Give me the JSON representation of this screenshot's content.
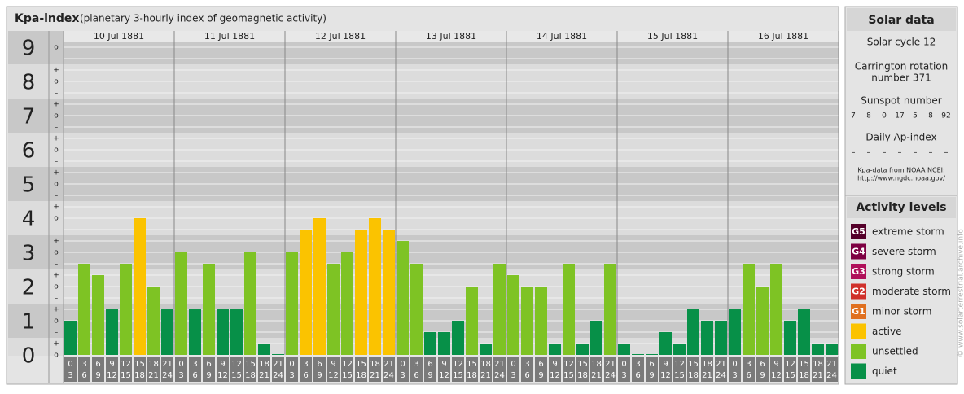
{
  "chart_data": {
    "type": "bar",
    "title": "Kpa-index",
    "subtitle": "(planetary 3-hourly index of geomagnetic activity)",
    "ylim": [
      0,
      9
    ],
    "yticks": [
      0,
      1,
      2,
      3,
      4,
      5,
      6,
      7,
      8,
      9
    ],
    "minor_yticks": [
      {
        "value": 0,
        "label": "o"
      },
      {
        "value": 0.333,
        "label": "+"
      },
      {
        "value": 0.667,
        "label": "–"
      },
      {
        "value": 1,
        "label": "o"
      },
      {
        "value": 1.333,
        "label": "+"
      },
      {
        "value": 1.667,
        "label": "–"
      },
      {
        "value": 2,
        "label": "o"
      },
      {
        "value": 2.333,
        "label": "+"
      },
      {
        "value": 2.667,
        "label": "–"
      },
      {
        "value": 3,
        "label": "o"
      },
      {
        "value": 3.333,
        "label": "+"
      },
      {
        "value": 3.667,
        "label": "–"
      },
      {
        "value": 4,
        "label": "o"
      },
      {
        "value": 4.333,
        "label": "+"
      },
      {
        "value": 4.667,
        "label": "–"
      },
      {
        "value": 5,
        "label": "o"
      },
      {
        "value": 5.333,
        "label": "+"
      },
      {
        "value": 5.667,
        "label": "–"
      },
      {
        "value": 6,
        "label": "o"
      },
      {
        "value": 6.333,
        "label": "+"
      },
      {
        "value": 6.667,
        "label": "–"
      },
      {
        "value": 7,
        "label": "o"
      },
      {
        "value": 7.333,
        "label": "+"
      },
      {
        "value": 7.667,
        "label": "–"
      },
      {
        "value": 8,
        "label": "o"
      },
      {
        "value": 8.333,
        "label": "+"
      },
      {
        "value": 8.667,
        "label": "–"
      },
      {
        "value": 9,
        "label": "o"
      }
    ],
    "grid": true,
    "bands": true,
    "hour_labels": [
      {
        "start": "0",
        "end": "3"
      },
      {
        "start": "3",
        "end": "6"
      },
      {
        "start": "6",
        "end": "9"
      },
      {
        "start": "9",
        "end": "12"
      },
      {
        "start": "12",
        "end": "15"
      },
      {
        "start": "15",
        "end": "18"
      },
      {
        "start": "18",
        "end": "21"
      },
      {
        "start": "21",
        "end": "24"
      }
    ],
    "days": [
      {
        "label": "10 Jul 1881",
        "values": [
          1,
          2.667,
          2.333,
          1.333,
          2.667,
          4,
          2,
          1.333
        ],
        "colors": [
          "#079048",
          "#7ec324",
          "#7ec324",
          "#079048",
          "#7ec324",
          "#fbc300",
          "#7ec324",
          "#079048"
        ]
      },
      {
        "label": "11 Jul 1881",
        "values": [
          3,
          1.333,
          2.667,
          1.333,
          1.333,
          3,
          0.333,
          0
        ],
        "colors": [
          "#7ec324",
          "#079048",
          "#7ec324",
          "#079048",
          "#079048",
          "#7ec324",
          "#079048",
          "#079048"
        ]
      },
      {
        "label": "12 Jul 1881",
        "values": [
          3,
          3.667,
          4,
          2.667,
          3,
          3.667,
          4,
          3.667
        ],
        "colors": [
          "#7ec324",
          "#fbc300",
          "#fbc300",
          "#7ec324",
          "#7ec324",
          "#fbc300",
          "#fbc300",
          "#fbc300"
        ]
      },
      {
        "label": "13 Jul 1881",
        "values": [
          3.333,
          2.667,
          0.667,
          0.667,
          1,
          2,
          0.333,
          2.667
        ],
        "colors": [
          "#7ec324",
          "#7ec324",
          "#079048",
          "#079048",
          "#079048",
          "#7ec324",
          "#079048",
          "#7ec324"
        ]
      },
      {
        "label": "14 Jul 1881",
        "values": [
          2.333,
          2,
          2,
          0.333,
          2.667,
          0.333,
          1,
          2.667
        ],
        "colors": [
          "#7ec324",
          "#7ec324",
          "#7ec324",
          "#079048",
          "#7ec324",
          "#079048",
          "#079048",
          "#7ec324"
        ]
      },
      {
        "label": "15 Jul 1881",
        "values": [
          0.333,
          0,
          0,
          0.667,
          0.333,
          1.333,
          1,
          1
        ],
        "colors": [
          "#079048",
          "#079048",
          "#079048",
          "#079048",
          "#079048",
          "#079048",
          "#079048",
          "#079048"
        ]
      },
      {
        "label": "16 Jul 1881",
        "values": [
          1.333,
          2.667,
          2,
          2.667,
          1,
          1.333,
          0.333,
          0.333
        ],
        "colors": [
          "#079048",
          "#7ec324",
          "#7ec324",
          "#7ec324",
          "#079048",
          "#079048",
          "#079048",
          "#079048"
        ]
      }
    ]
  },
  "solar_data": {
    "title": "Solar data",
    "cycle": "Solar cycle 12",
    "carrington": [
      "Carrington rotation",
      "number 371"
    ],
    "sunspot_label": "Sunspot number",
    "sunspot_values": [
      7,
      8,
      0,
      17,
      5,
      8,
      92
    ],
    "ap_label": "Daily Ap-index",
    "ap_values": [
      "–",
      "–",
      "–",
      "–",
      "–",
      "–",
      "–"
    ],
    "source": [
      "Kpa-data from NOAA NCEI:",
      "http://www.ngdc.noaa.gov/"
    ]
  },
  "activity_levels": {
    "title": "Activity levels",
    "items": [
      {
        "badge": "G5",
        "name": "extreme storm",
        "color": "#55002a"
      },
      {
        "badge": "G4",
        "name": "severe storm",
        "color": "#7d0042"
      },
      {
        "badge": "G3",
        "name": "strong storm",
        "color": "#b0105a"
      },
      {
        "badge": "G2",
        "name": "moderate storm",
        "color": "#d0302a"
      },
      {
        "badge": "G1",
        "name": "minor storm",
        "color": "#e07020"
      },
      {
        "badge": null,
        "name": "active",
        "color": "#fbc300"
      },
      {
        "badge": null,
        "name": "unsettled",
        "color": "#7ec324"
      },
      {
        "badge": null,
        "name": "quiet",
        "color": "#079048"
      }
    ]
  },
  "watermark": "© www.solarterrestrial.archive.info"
}
